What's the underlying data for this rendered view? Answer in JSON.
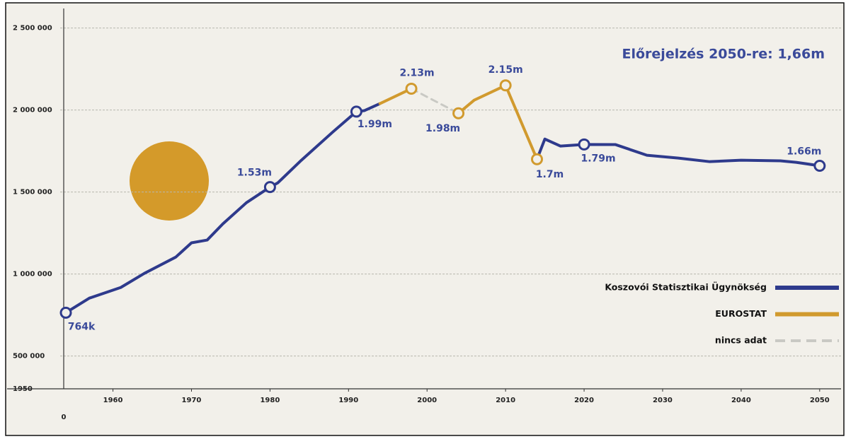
{
  "chart_data": {
    "type": "line",
    "annotations": {
      "forecast": "Előrejelzés 2050-re: 1,66m",
      "axis_start_label": "1950",
      "origin_label": "0"
    },
    "xlim": [
      1954,
      2052
    ],
    "xticks": [
      1960,
      1970,
      1980,
      1990,
      2000,
      2010,
      2020,
      2030,
      2040,
      2050
    ],
    "ylim": [
      300000,
      2600000
    ],
    "yticks": [
      {
        "value": 500000,
        "label": "500 000"
      },
      {
        "value": 1000000,
        "label": "1 000 000"
      },
      {
        "value": 1500000,
        "label": "1 500 000"
      },
      {
        "value": 2000000,
        "label": "2 000 000"
      },
      {
        "value": 2500000,
        "label": "2 500 000"
      }
    ],
    "grid": true,
    "legend": "right",
    "series": [
      {
        "name": "Koszovói Statisztikai Ügynökség",
        "color": "#2e3a8c",
        "x": [
          1954,
          1957,
          1961,
          1964,
          1968,
          1970,
          1972,
          1974,
          1977,
          1980,
          1981,
          1984,
          1988,
          1991,
          1992,
          1994,
          2004,
          2014,
          2015,
          2017,
          2020,
          2024,
          2028,
          2032,
          2036,
          2040,
          2045,
          2047,
          2050
        ],
        "values": [
          764000,
          853000,
          918000,
          1004000,
          1103000,
          1190000,
          1207000,
          1306000,
          1435000,
          1530000,
          1556000,
          1694000,
          1866000,
          1990000,
          1996000,
          2039000,
          null,
          1700000,
          1823000,
          1780000,
          1790000,
          1789000,
          1724000,
          1707000,
          1685000,
          1694000,
          1690000,
          1681000,
          1660000
        ],
        "value_labels": [
          "764k",
          null,
          null,
          null,
          null,
          null,
          null,
          null,
          null,
          "1.53m",
          null,
          null,
          null,
          "1.99m",
          null,
          null,
          null,
          null,
          null,
          null,
          "1.79m",
          null,
          null,
          null,
          null,
          null,
          null,
          null,
          "1.66m"
        ]
      },
      {
        "name": "EUROSTAT",
        "color": "#d19a2e",
        "x": [
          1994,
          1998,
          2001,
          2004,
          2006,
          2010,
          2014
        ],
        "values": [
          2039000,
          2130000,
          null,
          1980000,
          2060000,
          2150000,
          1700000
        ],
        "value_labels": [
          null,
          "2.13m",
          null,
          "1.98m",
          null,
          "2.15m",
          "1.7m"
        ]
      },
      {
        "name": "nincs adat",
        "color": "#c9c9c4",
        "dashed": true,
        "x": [
          1998,
          2004
        ],
        "values": [
          2130000,
          1980000
        ]
      }
    ]
  }
}
